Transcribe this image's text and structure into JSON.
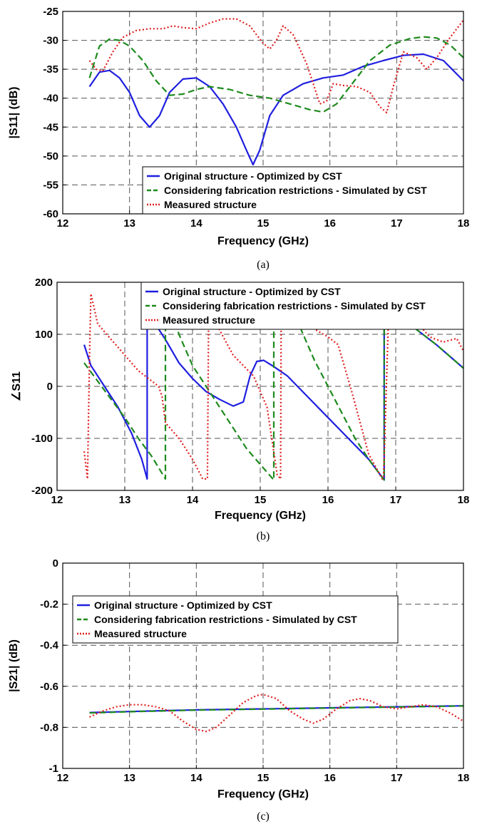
{
  "colors": {
    "original": "#1f1fe0",
    "fabrication": "#1e8a1e",
    "measured": "#e01f1f",
    "grid": "#555555"
  },
  "chart_data": [
    {
      "type": "line",
      "caption": "(a)",
      "xlabel": "Frequency (GHz)",
      "ylabel": "|S11| (dB)",
      "xlim": [
        12,
        18
      ],
      "ylim": [
        -60,
        -25
      ],
      "xticks": [
        12,
        13,
        14,
        15,
        16,
        17,
        18
      ],
      "yticks": [
        -60,
        -55,
        -50,
        -45,
        -40,
        -35,
        -30,
        -25
      ],
      "grid": true,
      "legend_position": "bottom-right",
      "series": [
        {
          "name": "Original structure - Optimized by CST",
          "key": "original",
          "style": "solid",
          "x": [
            12.4,
            12.55,
            12.7,
            12.85,
            13.0,
            13.15,
            13.3,
            13.45,
            13.6,
            13.8,
            14.0,
            14.2,
            14.4,
            14.6,
            14.75,
            14.85,
            14.95,
            15.1,
            15.3,
            15.6,
            15.9,
            16.2,
            16.5,
            16.8,
            17.1,
            17.4,
            17.7,
            18.0
          ],
          "y": [
            -38,
            -35.5,
            -35.2,
            -36.5,
            -39,
            -43,
            -45,
            -43,
            -39,
            -36.7,
            -36.5,
            -38,
            -41,
            -45,
            -49,
            -51.5,
            -49,
            -43,
            -39.5,
            -37.5,
            -36.5,
            -36,
            -34.5,
            -33.5,
            -32.6,
            -32.4,
            -33.5,
            -37
          ]
        },
        {
          "name": "Considering fabrication restrictions - Simulated by CST",
          "key": "fabrication",
          "style": "dashed",
          "x": [
            12.4,
            12.55,
            12.7,
            12.85,
            13.0,
            13.2,
            13.4,
            13.6,
            13.8,
            14.0,
            14.2,
            14.5,
            14.8,
            15.1,
            15.4,
            15.7,
            15.9,
            16.1,
            16.3,
            16.6,
            16.9,
            17.2,
            17.4,
            17.6,
            17.8,
            18.0
          ],
          "y": [
            -36.5,
            -31,
            -29.8,
            -30,
            -31,
            -33.5,
            -37,
            -39.5,
            -39.3,
            -38.5,
            -38,
            -38.5,
            -39.5,
            -40,
            -41,
            -42,
            -42.4,
            -41,
            -38,
            -33.5,
            -30.8,
            -29.7,
            -29.4,
            -29.6,
            -30.8,
            -33
          ]
        },
        {
          "name": "Measured structure",
          "key": "measured",
          "style": "dotted",
          "x": [
            12.4,
            12.5,
            12.6,
            12.75,
            12.9,
            13.1,
            13.3,
            13.5,
            13.65,
            13.8,
            14.0,
            14.2,
            14.4,
            14.6,
            14.8,
            14.9,
            15.0,
            15.1,
            15.2,
            15.3,
            15.45,
            15.65,
            15.75,
            15.85,
            15.95,
            16.05,
            16.2,
            16.4,
            16.6,
            16.75,
            16.85,
            16.95,
            17.1,
            17.3,
            17.45,
            17.6,
            17.8,
            18.0
          ],
          "y": [
            -33.5,
            -35,
            -35.3,
            -32,
            -29.5,
            -28.3,
            -28,
            -28,
            -27.5,
            -27.8,
            -28,
            -27,
            -26.3,
            -26.3,
            -27.5,
            -29,
            -30.5,
            -31.5,
            -30,
            -27.5,
            -29,
            -34,
            -37.5,
            -41,
            -40.5,
            -37.5,
            -37.8,
            -38,
            -39,
            -41.5,
            -42.5,
            -38,
            -32,
            -33,
            -35,
            -33,
            -29.5,
            -26.5
          ]
        }
      ]
    },
    {
      "type": "line",
      "caption": "(b)",
      "xlabel": "Frequency (GHz)",
      "ylabel": "∠S11",
      "xlim": [
        12,
        18
      ],
      "ylim": [
        -200,
        200
      ],
      "xticks": [
        12,
        13,
        14,
        15,
        16,
        17,
        18
      ],
      "yticks": [
        -200,
        -100,
        0,
        100,
        200
      ],
      "grid": true,
      "legend_position": "top-right",
      "series": [
        {
          "name": "Original structure - Optimized by CST",
          "key": "original",
          "style": "solid",
          "x": [
            12.4,
            12.5,
            12.7,
            12.9,
            13.1,
            13.25,
            13.33,
            13.33,
            13.45,
            13.6,
            13.8,
            14.0,
            14.2,
            14.4,
            14.6,
            14.75,
            14.85,
            14.95,
            15.05,
            15.2,
            15.4,
            15.7,
            16.0,
            16.3,
            16.6,
            16.83,
            16.83,
            17.0,
            17.3,
            17.6,
            18.0
          ],
          "y": [
            80,
            40,
            0,
            -40,
            -90,
            -140,
            -178,
            180,
            120,
            90,
            45,
            15,
            -10,
            -25,
            -38,
            -30,
            20,
            48,
            50,
            38,
            20,
            -20,
            -60,
            -100,
            -140,
            -180,
            180,
            150,
            110,
            80,
            35
          ]
        },
        {
          "name": "Considering fabrication restrictions - Simulated by CST",
          "key": "fabrication",
          "style": "dashed",
          "x": [
            12.4,
            12.6,
            12.8,
            13.0,
            13.2,
            13.4,
            13.6,
            13.6,
            13.8,
            14.0,
            14.2,
            14.4,
            14.6,
            14.8,
            15.0,
            15.2,
            15.2,
            15.4,
            15.6,
            15.8,
            16.0,
            16.2,
            16.4,
            16.6,
            16.83,
            16.83,
            17.0,
            17.3,
            17.6,
            18.0
          ],
          "y": [
            45,
            10,
            -25,
            -60,
            -100,
            -135,
            -178,
            180,
            100,
            40,
            0,
            -40,
            -80,
            -120,
            -150,
            -180,
            180,
            160,
            110,
            50,
            0,
            -50,
            -100,
            -140,
            -180,
            180,
            150,
            110,
            80,
            35
          ]
        },
        {
          "name": "Measured structure",
          "key": "measured",
          "style": "dotted",
          "x": [
            12.4,
            12.45,
            12.48,
            12.5,
            12.6,
            12.8,
            13.0,
            13.2,
            13.4,
            13.5,
            13.55,
            13.6,
            13.8,
            14.0,
            14.15,
            14.22,
            14.24,
            14.35,
            14.6,
            14.9,
            15.1,
            15.25,
            15.3,
            15.31,
            15.45,
            15.6,
            15.8,
            16.0,
            16.15,
            16.35,
            16.6,
            16.8,
            16.82,
            16.9,
            17.1,
            17.3,
            17.5,
            17.7,
            17.9,
            18.0
          ],
          "y": [
            -125,
            -178,
            60,
            178,
            120,
            90,
            60,
            30,
            10,
            0,
            -20,
            -70,
            -100,
            -140,
            -178,
            -178,
            178,
            120,
            60,
            20,
            -40,
            -170,
            -178,
            178,
            150,
            130,
            110,
            95,
            80,
            -10,
            -130,
            -178,
            -175,
            160,
            140,
            125,
            95,
            85,
            92,
            68
          ]
        }
      ]
    },
    {
      "type": "line",
      "caption": "(c)",
      "xlabel": "Frequency (GHz)",
      "ylabel": "|S21| (dB)",
      "xlim": [
        12,
        18
      ],
      "ylim": [
        -1,
        0
      ],
      "xticks": [
        12,
        13,
        14,
        15,
        16,
        17,
        18
      ],
      "yticks": [
        -1,
        -0.8,
        -0.6,
        -0.4,
        -0.2,
        0
      ],
      "grid": true,
      "legend_position": "upper-left",
      "series": [
        {
          "name": "Original structure - Optimized by CST",
          "key": "original",
          "style": "solid",
          "x": [
            12.4,
            13.0,
            14.0,
            15.0,
            16.0,
            17.0,
            18.0
          ],
          "y": [
            -0.728,
            -0.723,
            -0.715,
            -0.71,
            -0.705,
            -0.7,
            -0.695
          ]
        },
        {
          "name": "Considering fabrication restrictions - Simulated by CST",
          "key": "fabrication",
          "style": "dashed",
          "x": [
            12.4,
            13.0,
            14.0,
            15.0,
            16.0,
            17.0,
            18.0
          ],
          "y": [
            -0.73,
            -0.724,
            -0.716,
            -0.711,
            -0.706,
            -0.701,
            -0.696
          ]
        },
        {
          "name": "Measured structure",
          "key": "measured",
          "style": "dotted",
          "x": [
            12.4,
            12.6,
            12.8,
            13.0,
            13.2,
            13.4,
            13.6,
            13.8,
            14.0,
            14.15,
            14.3,
            14.5,
            14.7,
            14.9,
            15.0,
            15.2,
            15.4,
            15.6,
            15.75,
            15.9,
            16.1,
            16.3,
            16.45,
            16.6,
            16.8,
            17.0,
            17.2,
            17.4,
            17.6,
            17.8,
            18.0
          ],
          "y": [
            -0.75,
            -0.72,
            -0.7,
            -0.69,
            -0.69,
            -0.7,
            -0.72,
            -0.77,
            -0.81,
            -0.82,
            -0.8,
            -0.74,
            -0.68,
            -0.645,
            -0.64,
            -0.66,
            -0.72,
            -0.76,
            -0.78,
            -0.76,
            -0.71,
            -0.67,
            -0.66,
            -0.67,
            -0.7,
            -0.71,
            -0.7,
            -0.69,
            -0.7,
            -0.73,
            -0.77
          ]
        }
      ]
    }
  ]
}
